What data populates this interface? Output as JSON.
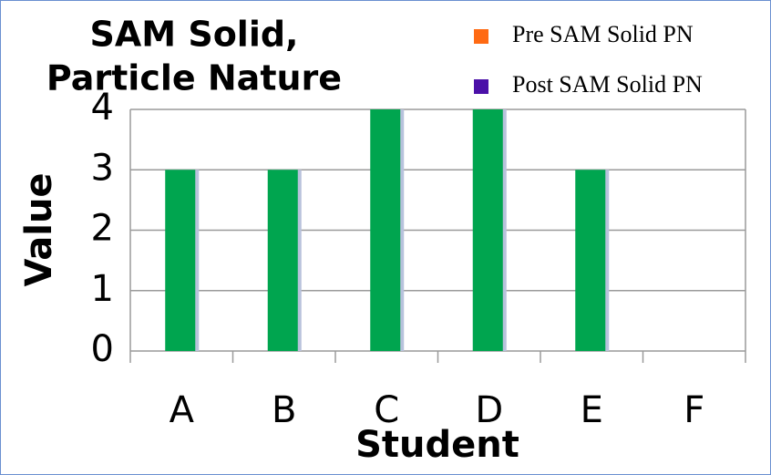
{
  "chart_data": {
    "type": "bar",
    "title": [
      "SAM Solid,",
      "Particle Nature"
    ],
    "x_label": "Student",
    "y_label": "Value",
    "categories": [
      "A",
      "B",
      "C",
      "D",
      "E",
      "F"
    ],
    "values": [
      3,
      3,
      4,
      4,
      3,
      0
    ],
    "color": "#00a54f",
    "legend": [
      {
        "name": "Pre SAM Solid PN",
        "color": "#ff6a13"
      },
      {
        "name": "Post SAM Solid PN",
        "color": "#4b10a8"
      }
    ],
    "legend_position": "top-right",
    "ylim": [
      0,
      4
    ],
    "yticks": [
      0,
      1,
      2,
      3,
      4
    ],
    "grid": true
  }
}
